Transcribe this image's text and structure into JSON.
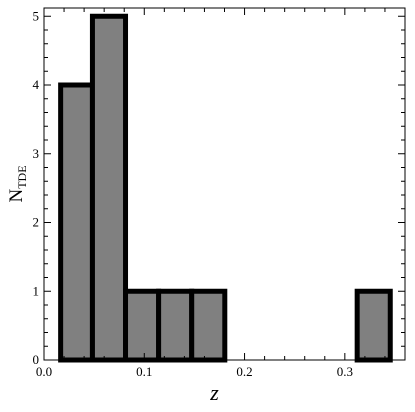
{
  "chart_data": {
    "type": "bar",
    "bin_edges": [
      0.0166,
      0.0483,
      0.0813,
      0.1143,
      0.1473,
      0.1803,
      0.2133,
      0.2463,
      0.2793,
      0.3123,
      0.3453
    ],
    "values": [
      4,
      5,
      1,
      1,
      1,
      0,
      0,
      0,
      0,
      1
    ],
    "xlabel": "z",
    "ylabel": {
      "main": "N",
      "sub": "TDE"
    },
    "xlim": [
      0.0,
      0.36
    ],
    "ylim": [
      0,
      5.12
    ],
    "x_ticks": [
      {
        "value": 0.0,
        "label": "0.0"
      },
      {
        "value": 0.1,
        "label": "0.1"
      },
      {
        "value": 0.2,
        "label": "0.2"
      },
      {
        "value": 0.3,
        "label": "0.3"
      }
    ],
    "y_ticks": [
      {
        "value": 0,
        "label": "0"
      },
      {
        "value": 1,
        "label": "1"
      },
      {
        "value": 2,
        "label": "2"
      },
      {
        "value": 3,
        "label": "3"
      },
      {
        "value": 4,
        "label": "4"
      },
      {
        "value": 5,
        "label": "5"
      }
    ],
    "grid": false,
    "bar_fill": "#808080",
    "bar_edge": "#000000"
  }
}
